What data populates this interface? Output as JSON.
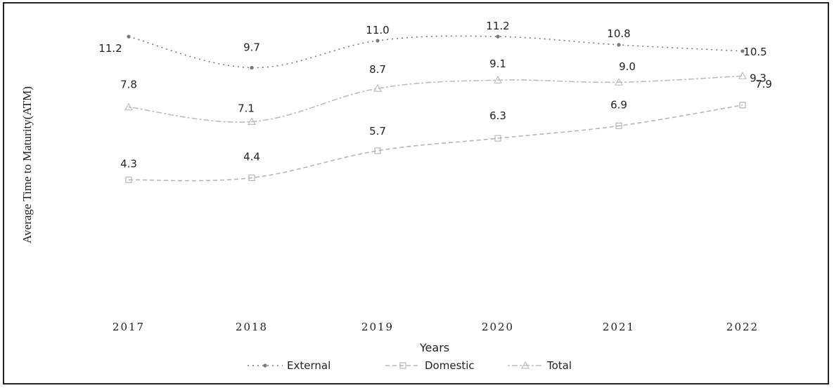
{
  "chart_data": {
    "type": "line",
    "title": "",
    "xlabel": "Years",
    "ylabel": "Average Time to Maturity(ATM)",
    "categories": [
      "2017",
      "2018",
      "2019",
      "2020",
      "2021",
      "2022"
    ],
    "ylim": [
      0,
      12
    ],
    "grid": false,
    "legend_position": "bottom",
    "series": [
      {
        "name": "External",
        "values": [
          11.2,
          9.7,
          11.0,
          11.2,
          10.8,
          10.5
        ],
        "color": "#7a7a7a",
        "marker": "dot"
      },
      {
        "name": "Domestic",
        "values": [
          4.3,
          4.4,
          5.7,
          6.3,
          6.9,
          7.9
        ],
        "color": "#b5b5b5",
        "marker": "square"
      },
      {
        "name": "Total",
        "values": [
          7.8,
          7.1,
          8.7,
          9.1,
          9.0,
          9.3
        ],
        "color": "#bdbdbd",
        "marker": "triangle"
      }
    ]
  }
}
